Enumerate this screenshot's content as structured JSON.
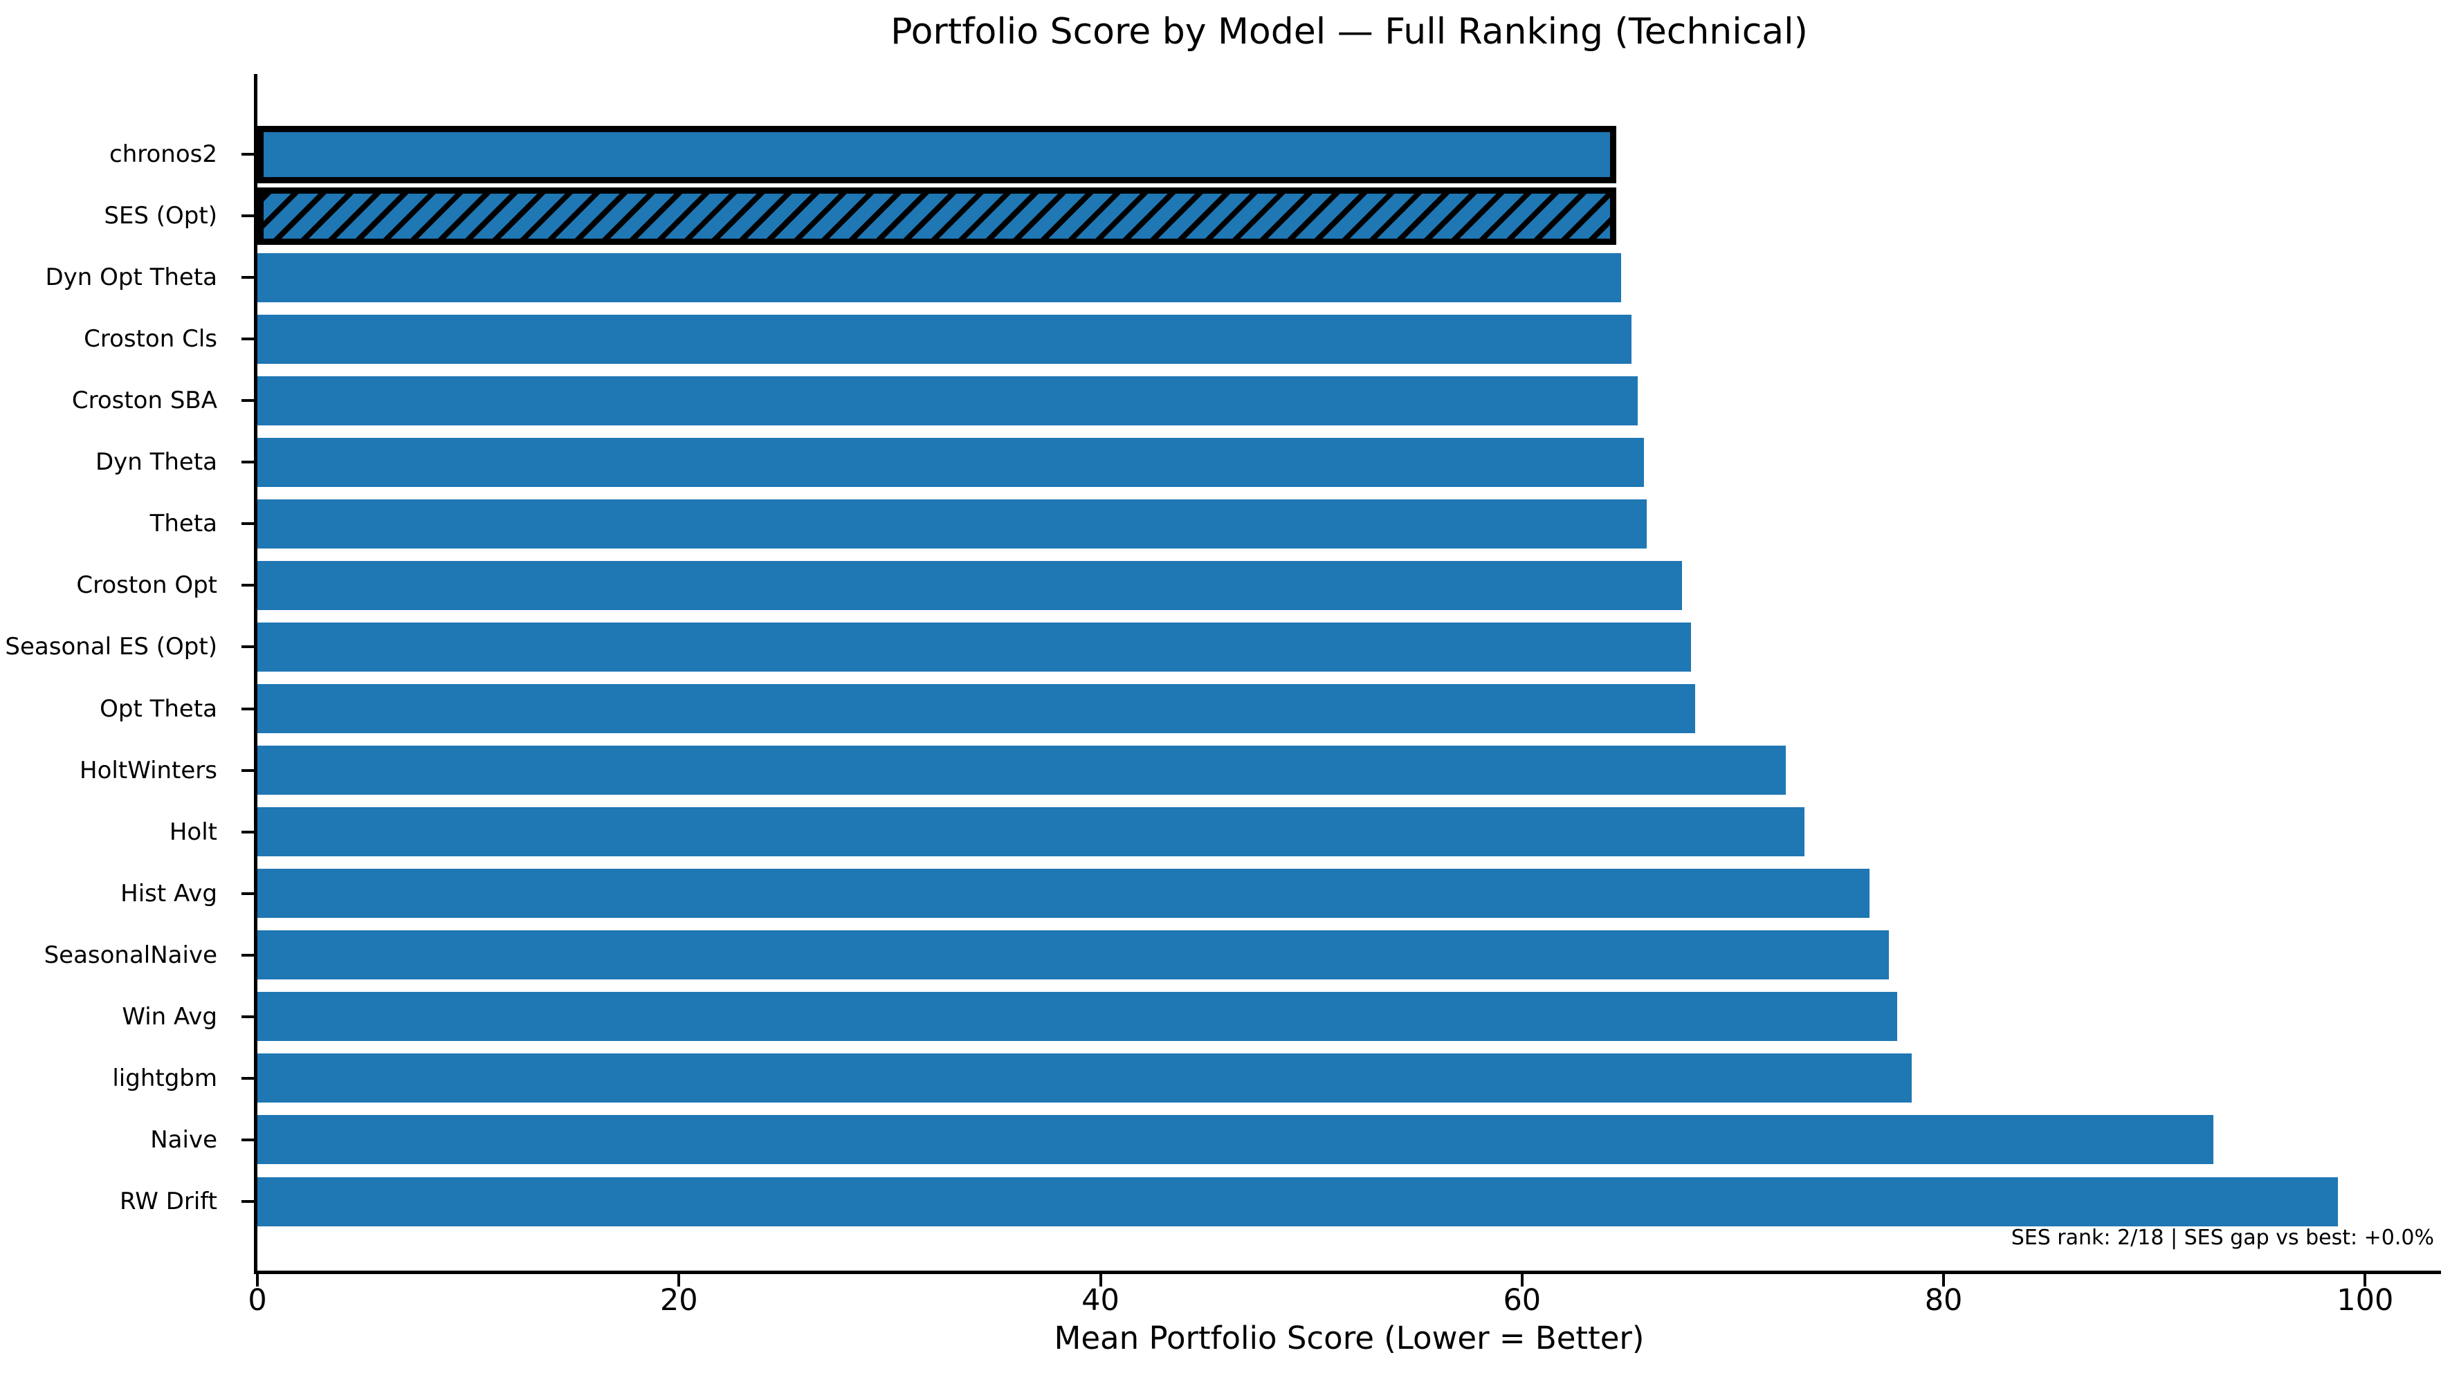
{
  "chart_data": {
    "type": "bar",
    "orientation": "horizontal",
    "title": "Portfolio Score by Model — Full Ranking (Technical)",
    "xlabel": "Mean Portfolio Score (Lower = Better)",
    "ylabel": "",
    "annotation": "SES rank: 2/18 | SES gap vs best: +0.0%",
    "categories": [
      "chronos2",
      "SES (Opt)",
      "Dyn Opt Theta",
      "Croston Cls",
      "Croston SBA",
      "Dyn Theta",
      "Theta",
      "Croston Opt",
      "Seasonal ES (Opt)",
      "Opt Theta",
      "HoltWinters",
      "Holt",
      "Hist Avg",
      "SeasonalNaive",
      "Win Avg",
      "lightgbm",
      "Naive",
      "RW Drift"
    ],
    "values": [
      64.3,
      64.3,
      64.7,
      65.2,
      65.5,
      65.8,
      65.9,
      67.6,
      68.0,
      68.2,
      72.5,
      73.4,
      76.5,
      77.4,
      77.8,
      78.5,
      92.8,
      98.7
    ],
    "bar_styles": [
      "outlined",
      "hatched",
      "plain",
      "plain",
      "plain",
      "plain",
      "plain",
      "plain",
      "plain",
      "plain",
      "plain",
      "plain",
      "plain",
      "plain",
      "plain",
      "plain",
      "plain",
      "plain"
    ],
    "bar_color": "#1f77b4",
    "highlight_edge_color": "#000000",
    "xticks": [
      0,
      20,
      40,
      60,
      80,
      100
    ],
    "xlim": [
      0,
      103.6
    ],
    "grid": "off",
    "legend": "none",
    "value_order": "ascending (lower = better, best at top)"
  }
}
